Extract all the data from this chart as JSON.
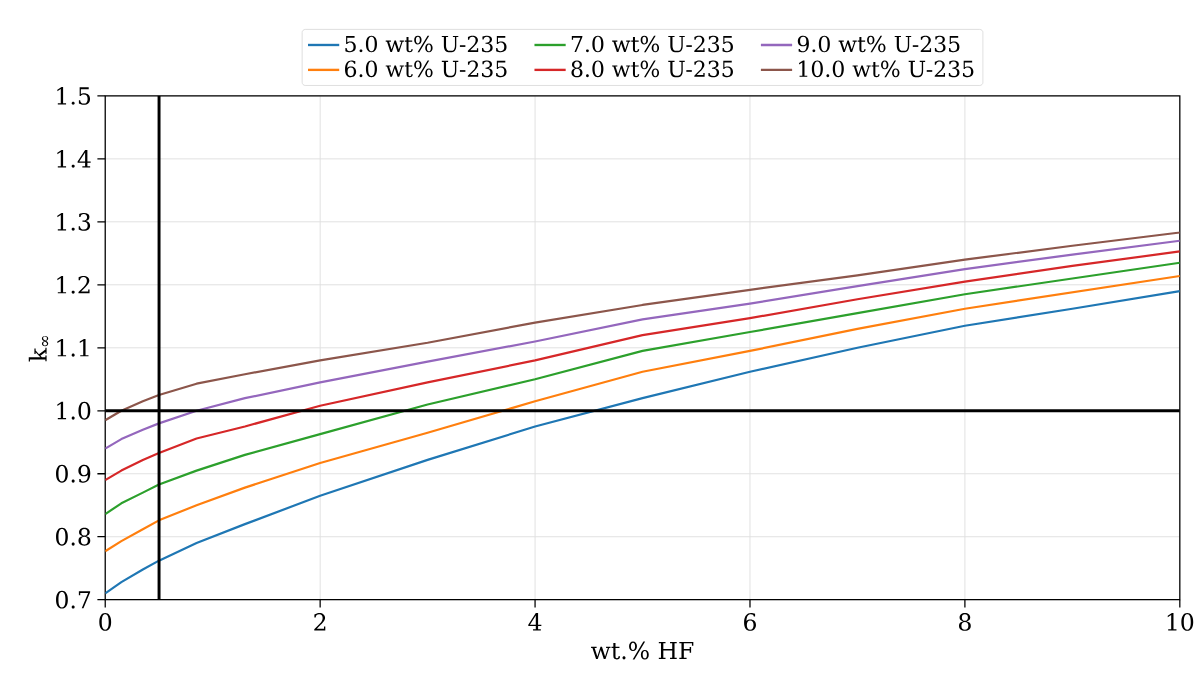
{
  "chart_data": {
    "type": "line",
    "xlabel": "wt.% HF",
    "ylabel": "k$_{∞}$",
    "x": [
      0,
      0.15,
      0.35,
      0.5,
      0.85,
      1.3,
      2,
      3,
      4,
      5,
      6,
      7,
      8,
      9,
      10
    ],
    "series": [
      {
        "name": "5.0 wt% U-235",
        "color": "#1f77b4",
        "values": [
          0.71,
          0.728,
          0.748,
          0.762,
          0.79,
          0.82,
          0.865,
          0.922,
          0.975,
          1.02,
          1.062,
          1.1,
          1.135,
          1.162,
          1.19
        ]
      },
      {
        "name": "6.0 wt% U-235",
        "color": "#ff7f0e",
        "values": [
          0.777,
          0.793,
          0.812,
          0.826,
          0.85,
          0.878,
          0.917,
          0.965,
          1.015,
          1.062,
          1.095,
          1.13,
          1.162,
          1.188,
          1.214
        ]
      },
      {
        "name": "7.0 wt% U-235",
        "color": "#2ca02c",
        "values": [
          0.836,
          0.853,
          0.87,
          0.883,
          0.905,
          0.93,
          0.963,
          1.01,
          1.05,
          1.095,
          1.125,
          1.155,
          1.185,
          1.21,
          1.235
        ]
      },
      {
        "name": "8.0 wt% U-235",
        "color": "#d62728",
        "values": [
          0.89,
          0.905,
          0.922,
          0.933,
          0.956,
          0.975,
          1.008,
          1.045,
          1.08,
          1.12,
          1.147,
          1.177,
          1.205,
          1.23,
          1.253
        ]
      },
      {
        "name": "9.0 wt% U-235",
        "color": "#9467bd",
        "values": [
          0.94,
          0.955,
          0.97,
          0.98,
          1.0,
          1.02,
          1.045,
          1.078,
          1.11,
          1.145,
          1.17,
          1.198,
          1.225,
          1.248,
          1.27
        ]
      },
      {
        "name": "10.0 wt% U-235",
        "color": "#8c564b",
        "values": [
          0.985,
          1.0,
          1.015,
          1.025,
          1.043,
          1.058,
          1.08,
          1.108,
          1.14,
          1.168,
          1.192,
          1.215,
          1.24,
          1.262,
          1.283
        ]
      }
    ],
    "xlim": [
      0,
      10
    ],
    "ylim": [
      0.7,
      1.5
    ],
    "xticks": [
      0,
      2,
      4,
      6,
      8,
      10
    ],
    "yticks": [
      {
        "value": 0.7,
        "label": "0.7"
      },
      {
        "value": 0.8,
        "label": "0.8"
      },
      {
        "value": 0.9,
        "label": "0.9"
      },
      {
        "value": 1.0,
        "label": "1.0"
      },
      {
        "value": 1.1,
        "label": "1.1"
      },
      {
        "value": 1.2,
        "label": "1.2"
      },
      {
        "value": 1.3,
        "label": "1.3"
      },
      {
        "value": 1.4,
        "label": "1.4"
      },
      {
        "value": 1.5,
        "label": "1.5"
      }
    ],
    "ref_lines": [
      {
        "axis": "x",
        "value": 0.5,
        "color": "#000000"
      },
      {
        "axis": "y",
        "value": 1.0,
        "color": "#000000"
      }
    ],
    "grid": true,
    "legend": "top",
    "marker": "none",
    "line_style": "solid"
  }
}
